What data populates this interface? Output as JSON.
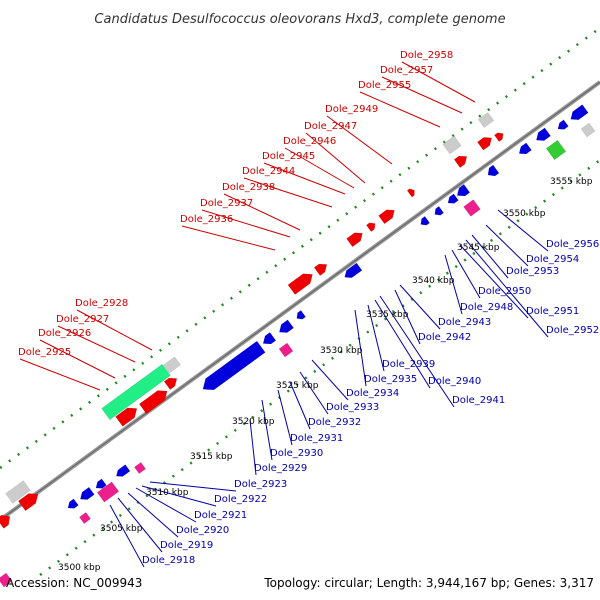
{
  "title": "Candidatus Desulfococcus oleovorans Hxd3, complete genome",
  "footer": {
    "accession": "Accession: NC_009943",
    "summary": "Topology: circular; Length: 3,944,167 bp; Genes: 3,317"
  },
  "colors": {
    "forward_gene": "#ee0000",
    "reverse_gene": "#0000dd",
    "rna_gene": "#ee1e8c",
    "other_feature": "#cccccc",
    "highlight_gene": "#22ee88",
    "label_forward": "#cc0000",
    "label_reverse": "#0000aa",
    "axis": "#888888",
    "tick": "#228822"
  },
  "ticks": [
    {
      "kb": 3500,
      "label": "3500 kbp"
    },
    {
      "kb": 3505,
      "label": "3505 kbp"
    },
    {
      "kb": 3510,
      "label": "3510 kbp"
    },
    {
      "kb": 3515,
      "label": "3515 kbp"
    },
    {
      "kb": 3520,
      "label": "3520 kbp"
    },
    {
      "kb": 3525,
      "label": "3525 kbp"
    },
    {
      "kb": 3530,
      "label": "3530 kbp"
    },
    {
      "kb": 3535,
      "label": "3535 kbp"
    },
    {
      "kb": 3540,
      "label": "3540 kbp"
    },
    {
      "kb": 3545,
      "label": "3545 kbp"
    },
    {
      "kb": 3550,
      "label": "3550 kbp"
    },
    {
      "kb": 3555,
      "label": "3555 kbp"
    }
  ],
  "forward_labels": [
    "Dole_2925",
    "Dole_2926",
    "Dole_2927",
    "Dole_2928",
    "Dole_2936",
    "Dole_2937",
    "Dole_2938",
    "Dole_2944",
    "Dole_2945",
    "Dole_2946",
    "Dole_2947",
    "Dole_2949",
    "Dole_2955",
    "Dole_2957",
    "Dole_2958"
  ],
  "reverse_labels": [
    "Dole_2918",
    "Dole_2919",
    "Dole_2920",
    "Dole_2921",
    "Dole_2922",
    "Dole_2923",
    "Dole_2929",
    "Dole_2930",
    "Dole_2931",
    "Dole_2932",
    "Dole_2933",
    "Dole_2934",
    "Dole_2935",
    "Dole_2939",
    "Dole_2940",
    "Dole_2941",
    "Dole_2942",
    "Dole_2943",
    "Dole_2948",
    "Dole_2950",
    "Dole_2951",
    "Dole_2952",
    "Dole_2953",
    "Dole_2954",
    "Dole_2956"
  ]
}
